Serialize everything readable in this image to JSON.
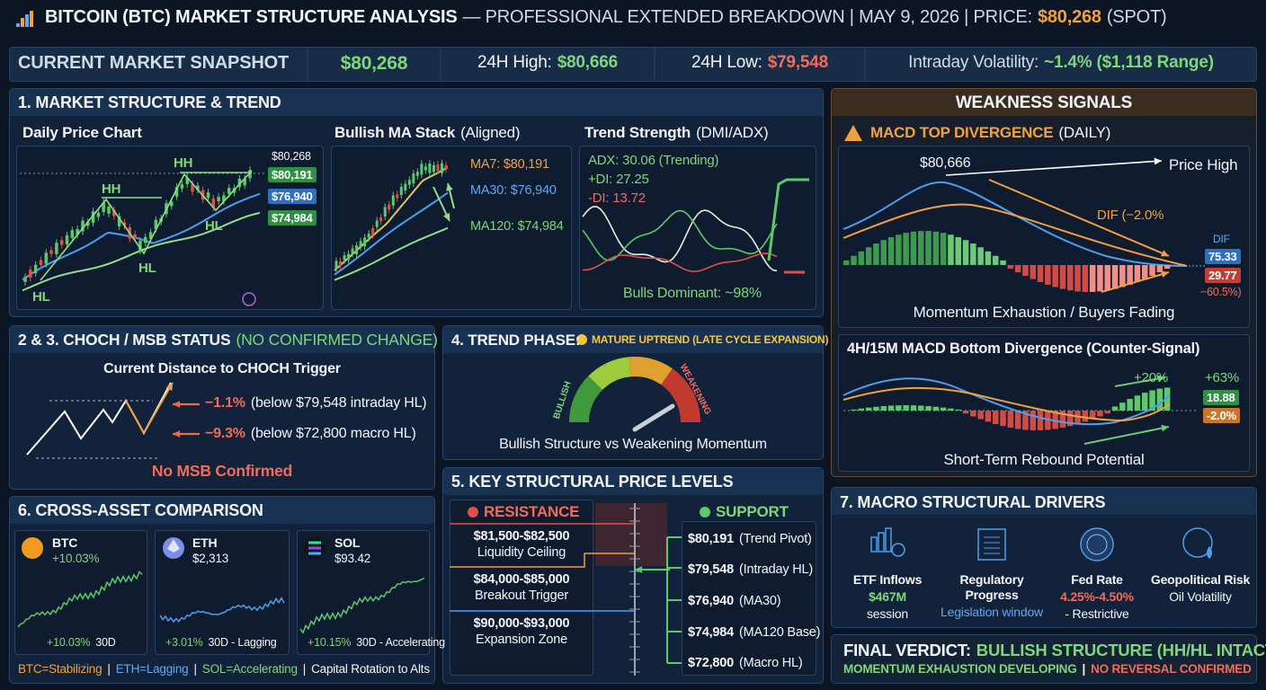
{
  "header": {
    "title_bold": "BITCOIN (BTC) MARKET STRUCTURE ANALYSIS",
    "title_rest": "— PROFESSIONAL EXTENDED BREAKDOWN | MAY 9, 2026 | PRICE:",
    "price": "$80,268",
    "spot": "(SPOT)"
  },
  "snapshot": {
    "title": "CURRENT MARKET SNAPSHOT",
    "price": "$80,268",
    "high_label": "24H High:",
    "high": "$80,666",
    "low_label": "24H Low:",
    "low": "$79,548",
    "vol_label": "Intraday Volatility:",
    "vol": "~1.4% ($1,118 Range)"
  },
  "structure": {
    "title": "1. MARKET STRUCTURE & TREND",
    "daily": {
      "title": "Daily Price Chart",
      "labels": [
        "HH",
        "HH",
        "HL",
        "HL",
        "HL"
      ],
      "price_tags": [
        "$80,268",
        "$80,191",
        "$76,940",
        "$74,984"
      ]
    },
    "ma": {
      "title": "Bullish MA Stack",
      "title_note": "(Aligned)",
      "labels": [
        "MA7: $80,191",
        "MA30: $76,940",
        "MA120: $74,984"
      ]
    },
    "trend": {
      "title": "Trend Strength",
      "title_note": "(DMI/ADX)",
      "lines": [
        "ADX: 30.06 (Trending)",
        "+DI: 27.25",
        "-DI: 13.72"
      ],
      "footer": "Bulls Dominant: ~98%"
    }
  },
  "weakness": {
    "title": "WEAKNESS SIGNALS",
    "macd_top": {
      "title": "MACD TOP DIVERGENCE",
      "title_note": "(DAILY)",
      "peak": "$80,666",
      "price_high": "Price High",
      "dif": "DIF (−2.0%",
      "dif_label": "DIF",
      "dif_value": "75.33",
      "dea_value": "29.77",
      "change": "−60.5%)",
      "caption": "Momentum Exhaustion / Buyers Fading"
    },
    "macd_bottom": {
      "title": "4H/15M MACD Bottom Divergence (Counter-Signal)",
      "pct1": "+20%",
      "pct2": "+63%",
      "v1": "18.88",
      "v2": "-2.0%",
      "caption": "Short-Term Rebound Potential"
    }
  },
  "choch": {
    "title": "2 & 3. CHOCH / MSB STATUS",
    "title_note": "(NO CONFIRMED CHANGE)",
    "subtitle": "Current Distance to CHOCH Trigger",
    "rows": [
      {
        "pct": "−1.1%",
        "note": "(below $79,548 intraday HL)"
      },
      {
        "pct": "−9.3%",
        "note": "(below $72,800 macro HL)"
      }
    ],
    "footer": "No MSB Confirmed"
  },
  "phase": {
    "title": "4. TREND PHASE:",
    "badge": "MATURE UPTREND (LATE CYCLE EXPANSION)",
    "bullish": "BULLISH",
    "weakening": "WEAKENING",
    "caption": "Bullish Structure vs Weakening Momentum"
  },
  "levels": {
    "title": "5. KEY STRUCTURAL PRICE LEVELS",
    "resistance_title": "RESISTANCE",
    "support_title": "SUPPORT",
    "resistance": [
      {
        "price": "$81,500-$82,500",
        "label": "Liquidity Ceiling"
      },
      {
        "price": "$84,000-$85,000",
        "label": "Breakout Trigger"
      },
      {
        "price": "$90,000-$93,000",
        "label": "Expansion Zone"
      }
    ],
    "support": [
      {
        "price": "$80,191",
        "label": "(Trend Pivot)"
      },
      {
        "price": "$79,548",
        "label": "(Intraday HL)"
      },
      {
        "price": "$76,940",
        "label": "(MA30)"
      },
      {
        "price": "$74,984",
        "label": "(MA120 Base)"
      },
      {
        "price": "$72,800",
        "label": "(Macro HL)"
      }
    ]
  },
  "cross": {
    "title": "6. CROSS-ASSET COMPARISON",
    "assets": [
      {
        "symbol": "BTC",
        "value": "+10.03%",
        "pct": "+10.03%",
        "note": "30D"
      },
      {
        "symbol": "ETH",
        "value": "$2,313",
        "pct": "+3.01%",
        "note": "30D - Lagging"
      },
      {
        "symbol": "SOL",
        "value": "$93.42",
        "pct": "+10.15%",
        "note": "30D - Accelerating"
      }
    ],
    "summary": [
      "BTC=Stabilizing",
      "|",
      "ETH=Lagging",
      "|",
      "SOL=Accelerating",
      "|",
      "Capital Rotation to Alts"
    ]
  },
  "macro": {
    "title": "7. MACRO STRUCTURAL DRIVERS",
    "drivers": [
      {
        "name": "ETF Inflows",
        "value": "$467M",
        "note": "session"
      },
      {
        "name": "Regulatory Progress",
        "note": "Legislation window"
      },
      {
        "name": "Fed Rate",
        "value": "4.25%-4.50%",
        "note": "- Restrictive"
      },
      {
        "name": "Geopolitical Risk",
        "note": "Oil Volatility"
      }
    ]
  },
  "verdict": {
    "label": "FINAL VERDICT:",
    "main": "BULLISH STRUCTURE (HH/HL INTACT)",
    "sep": "|",
    "line2a": "MOMENTUM EXHAUSTION DEVELOPING",
    "sep2": "|",
    "line2b": "NO REVERSAL CONFIRMED"
  }
}
